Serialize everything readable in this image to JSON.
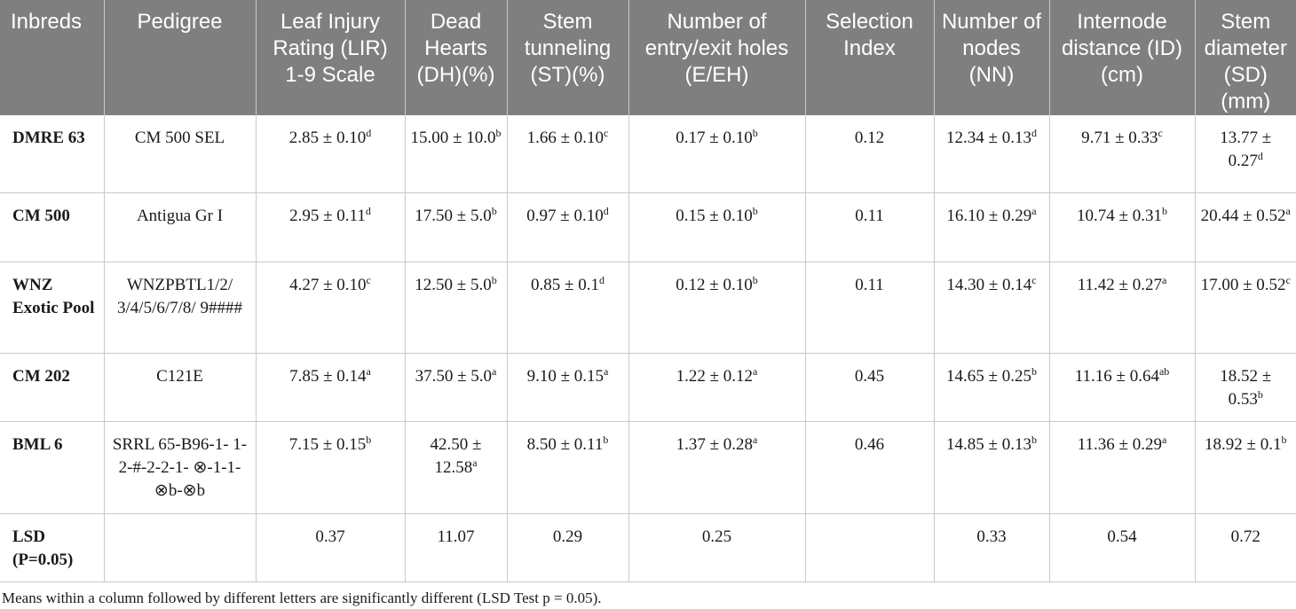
{
  "table": {
    "headers": [
      "Inbreds",
      "Pedigree",
      "Leaf Injury Rating (LIR) 1-9 Scale",
      "Dead Hearts (DH)(%)",
      "Stem tunneling (ST)(%)",
      "Number of entry/exit holes (E/EH)",
      "Selection Index",
      "Number of nodes (NN)",
      "Internode distance (ID) (cm)",
      "Stem diameter (SD) (mm)"
    ],
    "rows": [
      {
        "inbred": "DMRE 63",
        "pedigree": "CM 500 SEL",
        "lir": {
          "v": "2.85 ± 0.10",
          "s": "d"
        },
        "dh": {
          "v": "15.00 ± 10.0",
          "s": "b"
        },
        "st": {
          "v": "1.66 ± 0.10",
          "s": "c"
        },
        "eeh": {
          "v": "0.17 ± 0.10",
          "s": "b"
        },
        "si": "0.12",
        "nn": {
          "v": "12.34 ± 0.13",
          "s": "d"
        },
        "id": {
          "v": "9.71 ± 0.33",
          "s": "c"
        },
        "sd": {
          "v": "13.77 ± 0.27",
          "s": "d"
        }
      },
      {
        "inbred": "CM 500",
        "pedigree": "Antigua Gr I",
        "lir": {
          "v": "2.95 ± 0.11",
          "s": "d"
        },
        "dh": {
          "v": "17.50 ± 5.0",
          "s": "b"
        },
        "st": {
          "v": "0.97 ± 0.10",
          "s": "d"
        },
        "eeh": {
          "v": "0.15 ± 0.10",
          "s": "b"
        },
        "si": "0.11",
        "nn": {
          "v": "16.10 ± 0.29",
          "s": "a"
        },
        "id": {
          "v": "10.74 ± 0.31",
          "s": "b"
        },
        "sd": {
          "v": "20.44 ± 0.52",
          "s": "a"
        }
      },
      {
        "inbred": "WNZ Exotic Pool",
        "pedigree": "WNZPBTL1/2/ 3/4/5/6/7/8/ 9####",
        "lir": {
          "v": "4.27 ± 0.10",
          "s": "c"
        },
        "dh": {
          "v": "12.50 ± 5.0",
          "s": "b"
        },
        "st": {
          "v": "0.85 ± 0.1",
          "s": "d"
        },
        "eeh": {
          "v": "0.12 ± 0.10",
          "s": "b"
        },
        "si": "0.11",
        "nn": {
          "v": "14.30 ± 0.14",
          "s": "c"
        },
        "id": {
          "v": "11.42 ± 0.27",
          "s": "a"
        },
        "sd": {
          "v": "17.00 ± 0.52",
          "s": "c"
        }
      },
      {
        "inbred": "CM 202",
        "pedigree": "C121E",
        "lir": {
          "v": "7.85 ± 0.14",
          "s": "a"
        },
        "dh": {
          "v": "37.50 ± 5.0",
          "s": "a"
        },
        "st": {
          "v": "9.10 ± 0.15",
          "s": "a"
        },
        "eeh": {
          "v": "1.22 ± 0.12",
          "s": "a"
        },
        "si": "0.45",
        "nn": {
          "v": "14.65 ± 0.25",
          "s": "b"
        },
        "id": {
          "v": "11.16 ± 0.64",
          "s": "ab"
        },
        "sd": {
          "v": "18.52 ± 0.53",
          "s": "b"
        }
      },
      {
        "inbred": "BML 6",
        "pedigree": "SRRL 65-B96-1- 1-2-#-2-2-1- ⊗-1-1-⊗b-⊗b",
        "lir": {
          "v": "7.15 ± 0.15",
          "s": "b"
        },
        "dh": {
          "v": "42.50 ± 12.58",
          "s": "a"
        },
        "st": {
          "v": "8.50 ± 0.11",
          "s": "b"
        },
        "eeh": {
          "v": "1.37 ± 0.28",
          "s": "a"
        },
        "si": "0.46",
        "nn": {
          "v": "14.85 ± 0.13",
          "s": "b"
        },
        "id": {
          "v": "11.36 ± 0.29",
          "s": "a"
        },
        "sd": {
          "v": "18.92 ± 0.1",
          "s": "b"
        }
      },
      {
        "inbred": "LSD (P=0.05)",
        "pedigree": "",
        "lir": {
          "v": "0.37",
          "s": ""
        },
        "dh": {
          "v": "11.07",
          "s": ""
        },
        "st": {
          "v": "0.29",
          "s": ""
        },
        "eeh": {
          "v": "0.25",
          "s": ""
        },
        "si": "",
        "nn": {
          "v": "0.33",
          "s": ""
        },
        "id": {
          "v": "0.54",
          "s": ""
        },
        "sd": {
          "v": "0.72",
          "s": ""
        }
      }
    ]
  },
  "footnote": "Means within a column followed by different letters are significantly different (LSD Test p = 0.05)."
}
